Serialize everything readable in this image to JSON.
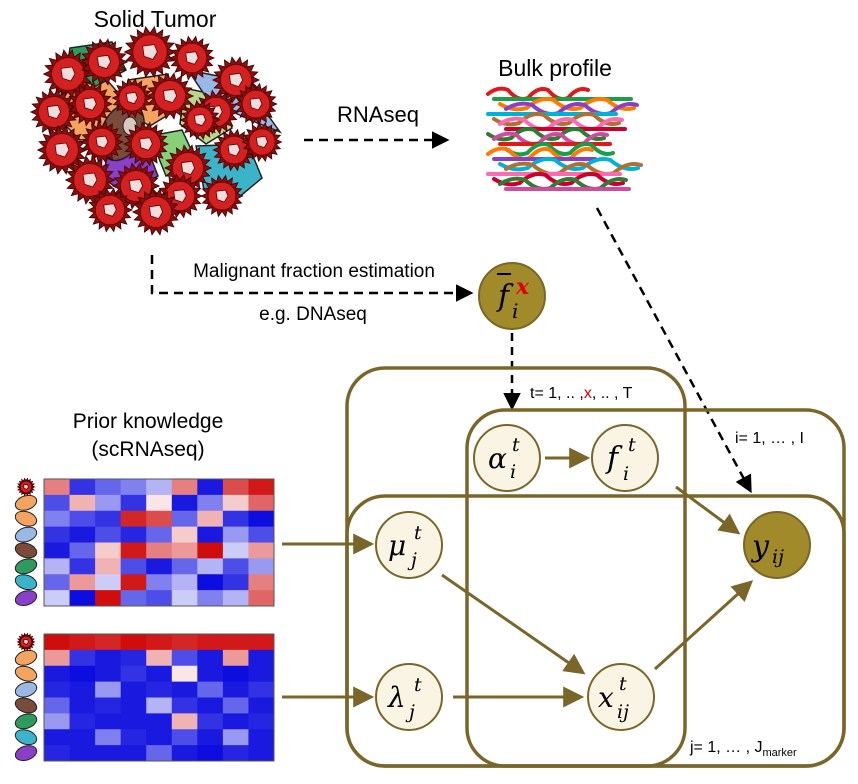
{
  "labels": {
    "solid_tumor": "Solid Tumor",
    "bulk_profile": "Bulk profile",
    "rnaseq": "RNAseq",
    "malignant_fraction": "Malignant fraction estimation",
    "dnaseq": "e.g. DNAseq",
    "prior_knowledge": "Prior knowledge",
    "scrnaseq": "(scRNAseq)"
  },
  "plates": {
    "t": {
      "prefix": "t= 1, .. ,",
      "highlight": "x",
      "suffix": ", .. , T"
    },
    "i": "i= 1, … , I",
    "j": {
      "main": "j= 1, … , J",
      "sub": "marker"
    }
  },
  "nodes": {
    "f_bar": {
      "base": "f",
      "sub": "i",
      "sup": "x"
    },
    "alpha": {
      "base": "α",
      "sub": "i",
      "sup": "t"
    },
    "f": {
      "base": "f",
      "sub": "i",
      "sup": "t"
    },
    "mu": {
      "base": "μ",
      "sub": "j",
      "sup": "t"
    },
    "lambda": {
      "base": "λ",
      "sub": "j",
      "sup": "t"
    },
    "x": {
      "base": "x",
      "sub": "ij",
      "sup": "t"
    },
    "y": {
      "base": "y",
      "sub": "ij"
    }
  },
  "colors": {
    "plate": "#7a6628",
    "observed_node": "#a08a2a",
    "latent_node_fill": "#faf4e4",
    "latent_node_stroke": "#7a6628",
    "highlight": "#e00000",
    "heatmap_low": "#0000dd",
    "heatmap_high": "#cc0000"
  },
  "heatmaps": {
    "mu_matrix": [
      [
        0.5,
        -0.8,
        -0.6,
        -0.5,
        -0.3,
        0.5,
        -0.9,
        0.7,
        0.9
      ],
      [
        -0.7,
        0.3,
        -0.4,
        -0.8,
        0.1,
        -0.9,
        -0.5,
        0.2,
        0.6
      ],
      [
        -0.5,
        -0.7,
        -0.8,
        0.85,
        0.7,
        -0.6,
        0.3,
        -0.8,
        -0.95
      ],
      [
        -0.8,
        -0.9,
        -0.7,
        -0.85,
        -0.6,
        0.2,
        -0.9,
        -0.4,
        -0.7
      ],
      [
        -0.9,
        -0.6,
        0.2,
        0.9,
        0.5,
        0.4,
        0.95,
        -0.2,
        0.4
      ],
      [
        -0.3,
        -0.8,
        0.3,
        -0.7,
        -0.9,
        -0.6,
        -0.3,
        -0.7,
        -0.4
      ],
      [
        -0.6,
        0.4,
        -0.2,
        0.9,
        -0.5,
        -0.3,
        -0.95,
        -0.8,
        0.5
      ],
      [
        -0.2,
        -0.95,
        0.95,
        -0.6,
        -0.7,
        -0.2,
        -0.5,
        -0.3,
        0.6
      ]
    ],
    "lambda_matrix": [
      [
        0.95,
        0.9,
        0.85,
        0.95,
        0.9,
        0.85,
        0.9,
        0.9,
        0.9
      ],
      [
        0.4,
        -0.8,
        -0.9,
        -0.85,
        0.3,
        -0.7,
        -0.9,
        0.4,
        -0.9
      ],
      [
        -0.9,
        -0.95,
        -0.9,
        -0.8,
        -0.9,
        0.1,
        -0.9,
        -0.95,
        -0.9
      ],
      [
        -0.85,
        -0.9,
        -0.4,
        -0.9,
        -0.85,
        -0.9,
        -0.6,
        -0.9,
        -0.8
      ],
      [
        -0.6,
        -0.9,
        -0.85,
        -0.9,
        -0.3,
        -0.8,
        -0.9,
        -0.6,
        -0.9
      ],
      [
        -0.4,
        -0.85,
        -0.9,
        -0.9,
        -0.9,
        0.3,
        -0.8,
        -0.9,
        -0.85
      ],
      [
        -0.9,
        -0.9,
        -0.5,
        -0.85,
        -0.9,
        -0.7,
        -0.9,
        -0.4,
        -0.9
      ],
      [
        -0.85,
        -0.9,
        -0.9,
        -0.9,
        -0.6,
        -0.9,
        -0.95,
        -0.85,
        -0.9
      ]
    ]
  }
}
